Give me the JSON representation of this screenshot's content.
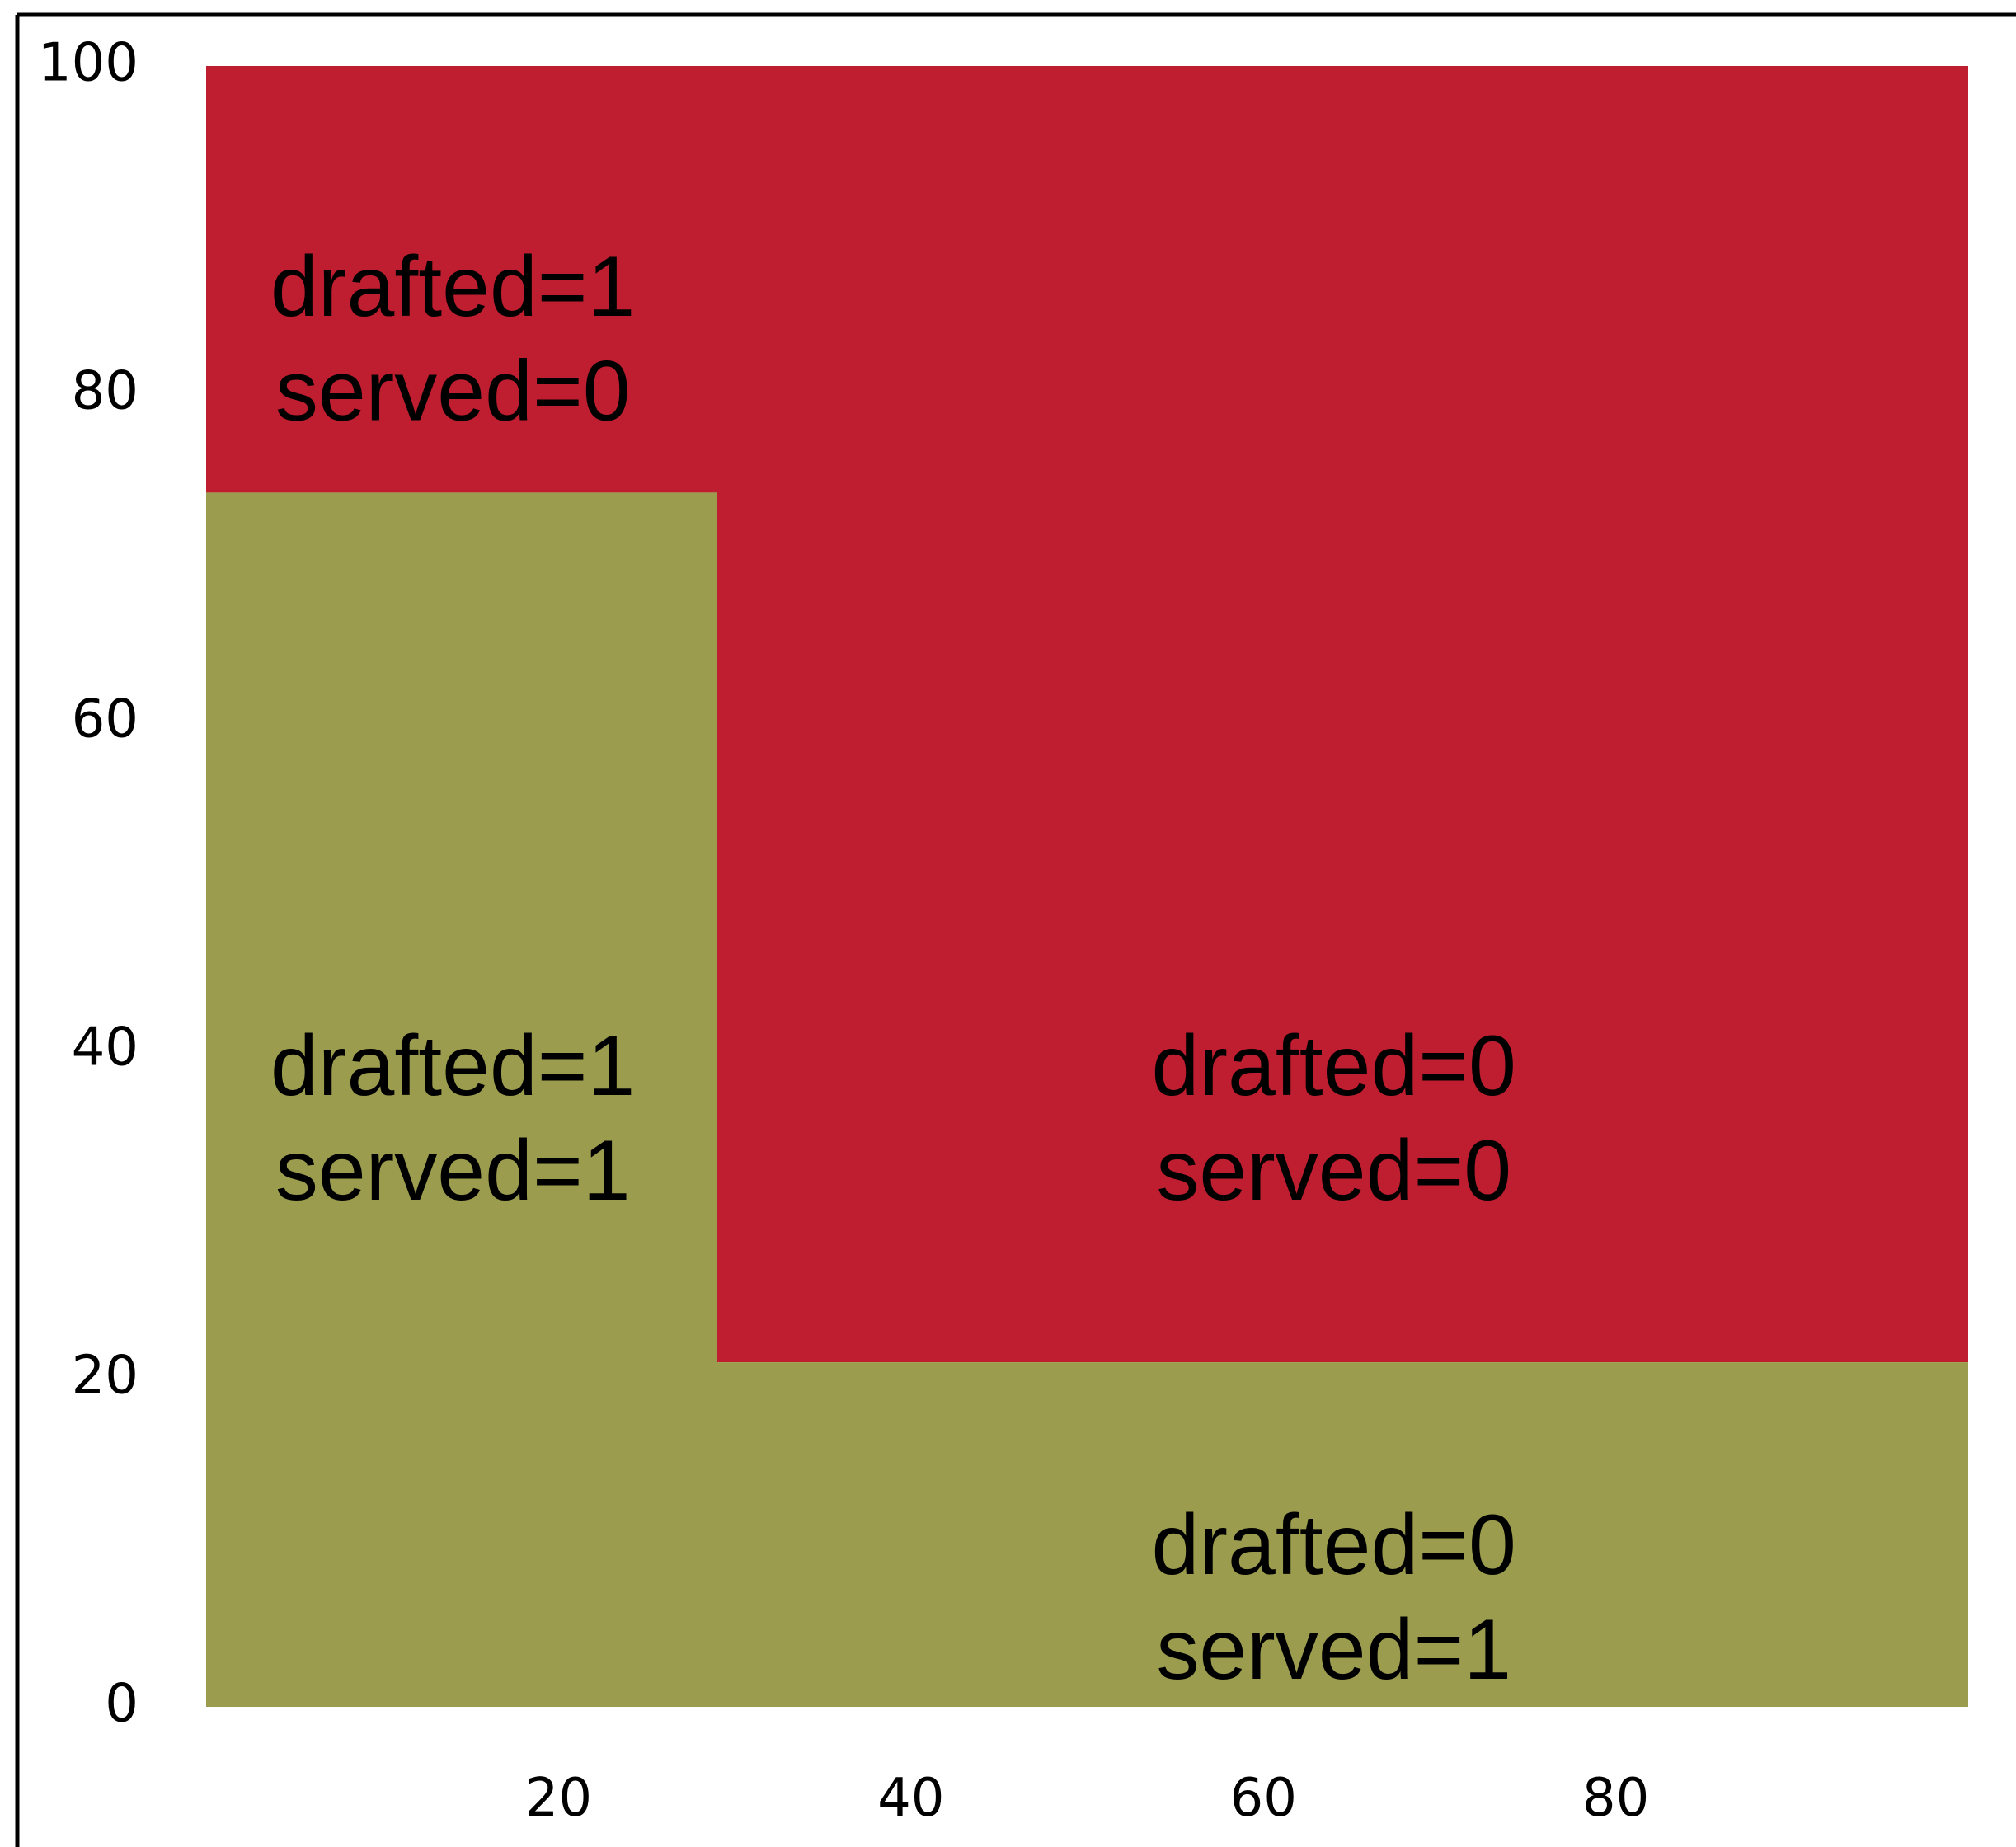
{
  "chart_data": {
    "type": "area",
    "x_ticks": [
      20,
      40,
      60,
      80
    ],
    "y_ticks": [
      0,
      20,
      40,
      60,
      80,
      100
    ],
    "xlim": [
      -10.5,
      100
    ],
    "ylim": [
      0,
      100
    ],
    "grid": false,
    "colors": {
      "served_0": "#be1e2f",
      "served_1": "#9c9c4e",
      "axis": "#000000"
    },
    "regions": [
      {
        "name": "drafted-1-served-0",
        "x": [
          0,
          29
        ],
        "y": [
          74,
          100
        ],
        "color_key": "served_0"
      },
      {
        "name": "drafted-1-served-1",
        "x": [
          0,
          29
        ],
        "y": [
          0,
          74
        ],
        "color_key": "served_1"
      },
      {
        "name": "drafted-0-served-0",
        "x": [
          29,
          100
        ],
        "y": [
          21,
          100
        ],
        "color_key": "served_0"
      },
      {
        "name": "drafted-0-served-1",
        "x": [
          29,
          100
        ],
        "y": [
          0,
          21
        ],
        "color_key": "served_1"
      }
    ],
    "annotations": [
      {
        "name": "drafted-1-served-0",
        "line1": "drafted=1",
        "line2": "served=0",
        "x": 14,
        "y": 84
      },
      {
        "name": "drafted-1-served-1",
        "line1": "drafted=1",
        "line2": "served=1",
        "x": 14,
        "y": 36.5
      },
      {
        "name": "drafted-0-served-0",
        "line1": "drafted=0",
        "line2": "served=0",
        "x": 64,
        "y": 36.5
      },
      {
        "name": "drafted-0-served-1",
        "line1": "drafted=0",
        "line2": "served=1",
        "x": 64,
        "y": 7.3
      }
    ]
  }
}
